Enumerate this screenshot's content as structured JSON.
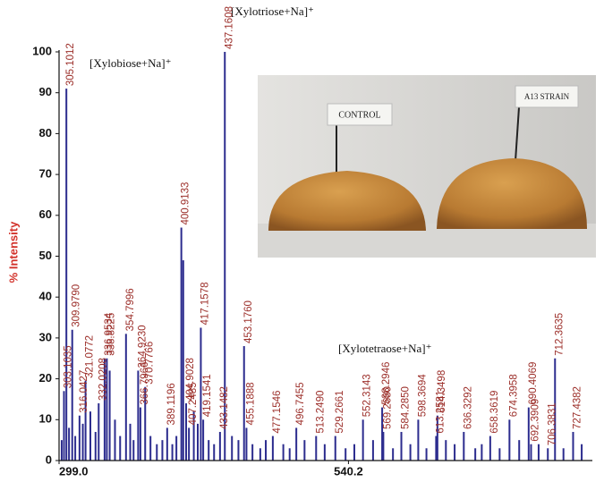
{
  "chart_data": {
    "type": "spectrum",
    "ylabel": "% Intensity",
    "xlim": [
      299.0,
      742
    ],
    "ylim": [
      0,
      100
    ],
    "xticks": [
      {
        "value": 299.0,
        "label": "299.0"
      },
      540.2
    ],
    "yticks": [
      0,
      10,
      20,
      30,
      40,
      50,
      60,
      70,
      80,
      90,
      100
    ],
    "color": "#2c2c8e",
    "label_color": "#9c2f2a",
    "annotations": [
      "[Xylobiose+Na]⁺",
      "[Xylotriose+Na]⁺",
      "[Xylotetraose+Na]⁺"
    ],
    "x": [
      303.1035,
      305.1012,
      309.979,
      316.0427,
      321.0772,
      332.0208,
      336.9534,
      338.8225,
      354.7996,
      364.923,
      366.7966,
      370.7766,
      389.1196,
      400.9133,
      404.9028,
      407.2485,
      417.1578,
      419.1541,
      433.1482,
      437.1608,
      453.176,
      455.1888,
      477.1546,
      496.7455,
      513.249,
      529.2661,
      552.3143,
      568.2946,
      569.268,
      584.285,
      598.3694,
      613.2581,
      614.3498,
      636.3292,
      658.3619,
      674.3958,
      690.4069,
      692.3909,
      706.3831,
      712.3635,
      727.4382,
      301.2,
      307.3,
      312.5,
      318.8,
      325.1,
      329.4,
      341.2,
      345.6,
      349.9,
      358.3,
      361.1,
      375.2,
      380.5,
      385.1,
      393.4,
      396.8,
      402.5,
      411.3,
      414.6,
      423.7,
      428.2,
      443.1,
      448.5,
      460.2,
      466.7,
      471.3,
      485.9,
      491.2,
      503.6,
      520.4,
      537.8,
      545.1,
      560.7,
      577.3,
      591.8,
      605.2,
      621.4,
      628.7,
      645.9,
      651.3,
      666.2,
      682.5,
      698.7,
      719.4,
      734.6
    ],
    "values": [
      17,
      91,
      32,
      11,
      19.5,
      14,
      25,
      25,
      31,
      22,
      13,
      18,
      8,
      57,
      14,
      8,
      32.5,
      10,
      7,
      100,
      28,
      8,
      6,
      8,
      6,
      6,
      10,
      13,
      7,
      7,
      10,
      6,
      11,
      7,
      6,
      10,
      13,
      4,
      3,
      25,
      7,
      5,
      8,
      6,
      9,
      12,
      7,
      22,
      10,
      6,
      9,
      5,
      6,
      4,
      5,
      4,
      6,
      49,
      12,
      9,
      5,
      4,
      6,
      5,
      4,
      3,
      5,
      4,
      3,
      5,
      4,
      3,
      4,
      5,
      3,
      4,
      3,
      5,
      4,
      3,
      4,
      3,
      5,
      4,
      3,
      4
    ],
    "labels": [
      "303.1035",
      "305.1012",
      "309.9790",
      "316.0427",
      "321.0772",
      "332.0208",
      "336.9534",
      "338.8225",
      "354.7996",
      "364.9230",
      "366.7966",
      "370.7766",
      "389.1196",
      "400.9133",
      "404.9028",
      "407.2485",
      "417.1578",
      "419.1541",
      "433.1482",
      "437.1608",
      "453.1760",
      "455.1888",
      "477.1546",
      "496.7455",
      "513.2490",
      "529.2661",
      "552.3143",
      "568.2946",
      "569.2680",
      "584.2850",
      "598.3694",
      "613.2581",
      "614.3498",
      "636.3292",
      "658.3619",
      "674.3958",
      "690.4069",
      "692.3909",
      "706.3831",
      "712.3635",
      "727.4382",
      null,
      null,
      null,
      null,
      null,
      null,
      null,
      null,
      null,
      null,
      null,
      null,
      null,
      null,
      null,
      null,
      null,
      null,
      null,
      null,
      null,
      null,
      null,
      null,
      null,
      null,
      null,
      null,
      null,
      null,
      null,
      null,
      null,
      null,
      null,
      null,
      null,
      null,
      null,
      null,
      null,
      null,
      null,
      null,
      null
    ]
  },
  "inset": {
    "flag_left": "CONTROL",
    "flag_right": "A13 STRAIN"
  }
}
